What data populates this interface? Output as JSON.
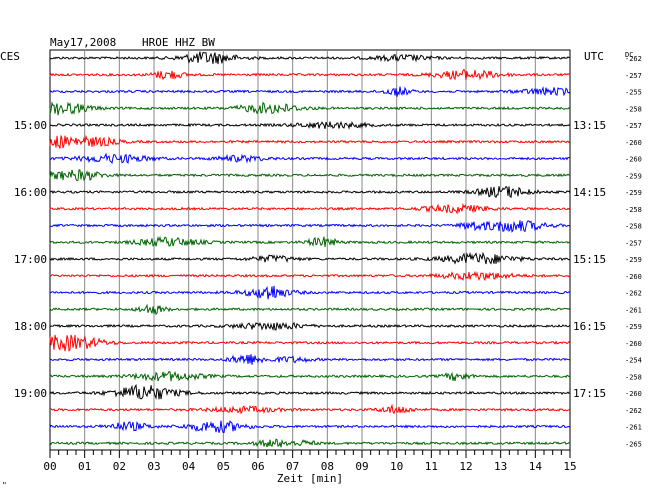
{
  "header": {
    "date": "May17,2008",
    "station": "HROE HHZ BW",
    "left_tz": "CES",
    "right_tz": "UTC",
    "dc_label": "DC"
  },
  "x_axis": {
    "label": "Zeit [min]",
    "ticks": [
      "00",
      "01",
      "02",
      "03",
      "04",
      "05",
      "06",
      "07",
      "08",
      "09",
      "10",
      "11",
      "12",
      "13",
      "14",
      "15"
    ],
    "range": [
      0,
      15
    ]
  },
  "left_time_labels": [
    {
      "row": 4,
      "text": "15:00"
    },
    {
      "row": 8,
      "text": "16:00"
    },
    {
      "row": 12,
      "text": "17:00"
    },
    {
      "row": 16,
      "text": "18:00"
    },
    {
      "row": 20,
      "text": "19:00"
    }
  ],
  "right_time_labels": [
    {
      "row": 4,
      "text": "13:15"
    },
    {
      "row": 8,
      "text": "14:15"
    },
    {
      "row": 12,
      "text": "15:15"
    },
    {
      "row": 16,
      "text": "16:15"
    },
    {
      "row": 20,
      "text": "17:15"
    }
  ],
  "dc_values": [
    "-262",
    "-257",
    "-255",
    "-258",
    "-257",
    "-260",
    "-260",
    "-259",
    "-259",
    "-258",
    "-258",
    "-257",
    "-259",
    "-260",
    "-262",
    "-261",
    "-259",
    "-260",
    "-254",
    "-258",
    "-260",
    "-262",
    "-261",
    "-265"
  ],
  "trace_colors": [
    "#000000",
    "#ff0000",
    "#0000ff",
    "#006400"
  ],
  "footer_mark": "\""
}
